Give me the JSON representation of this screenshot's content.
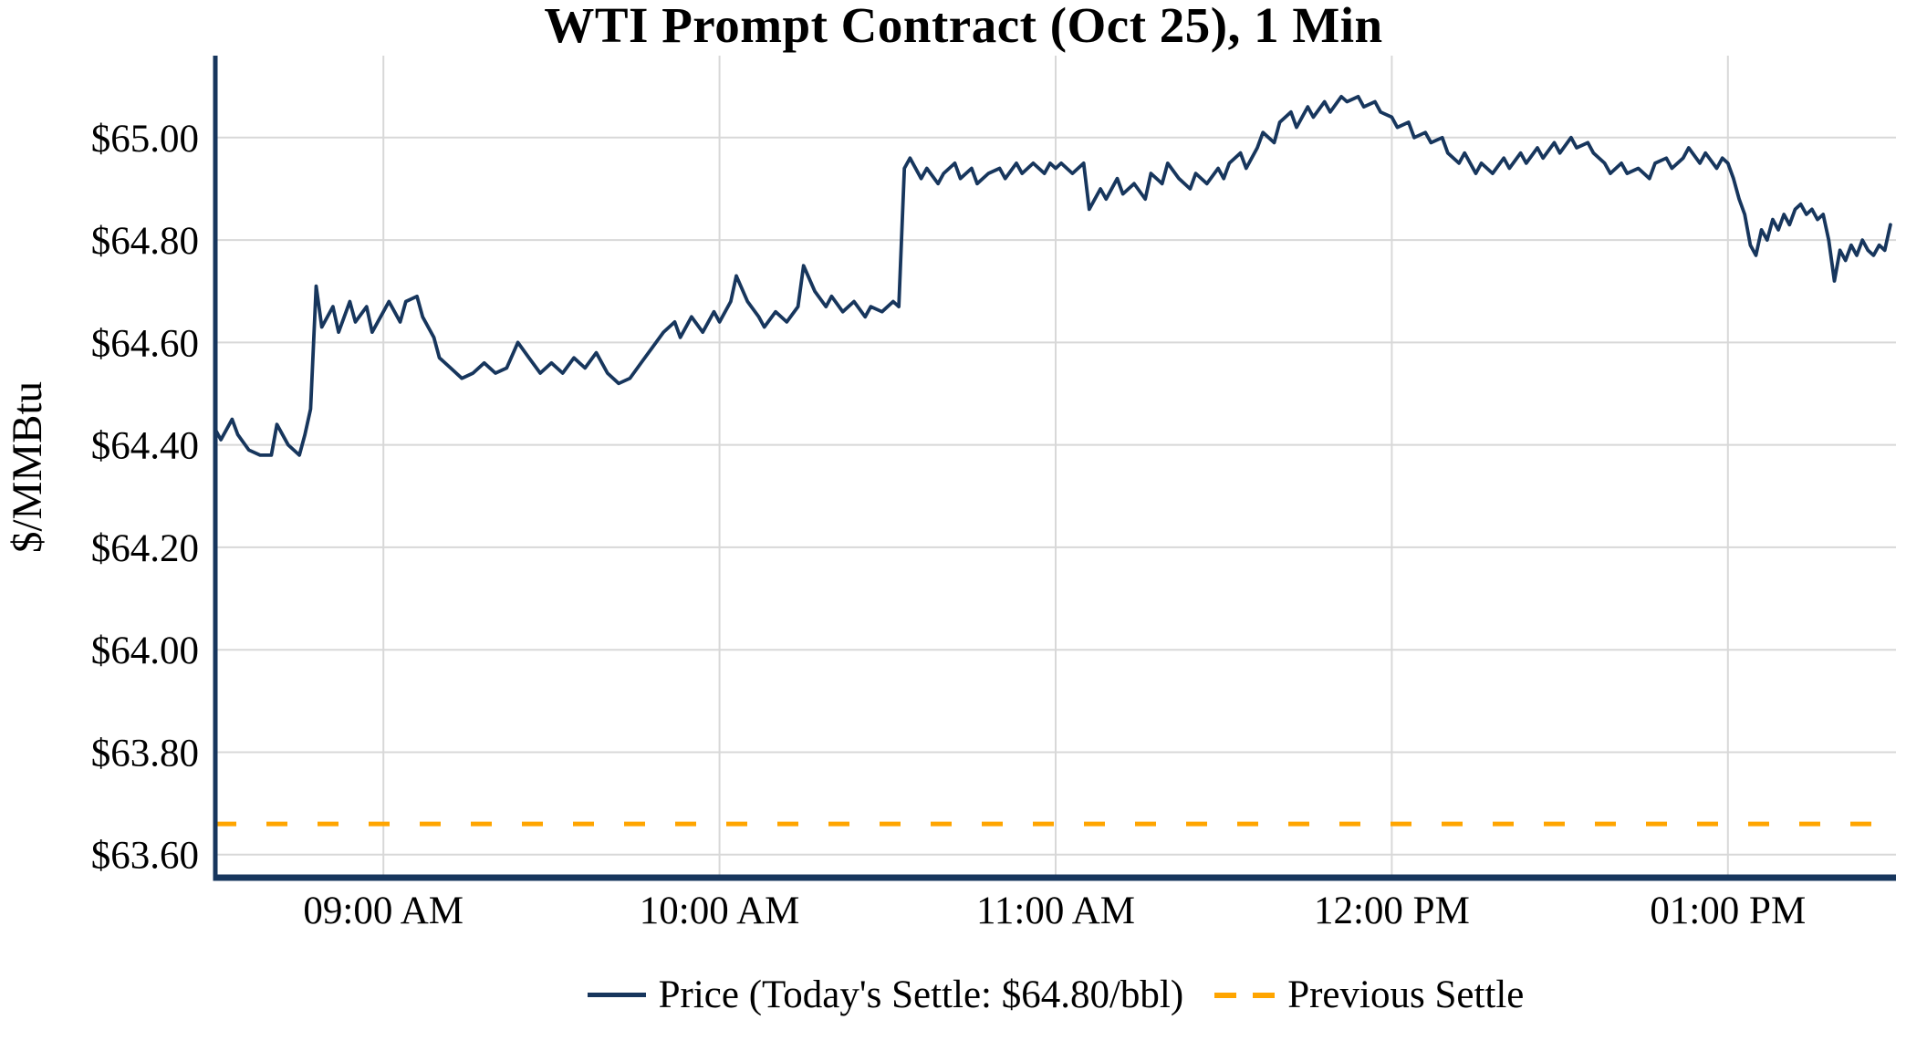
{
  "chart_data": {
    "type": "line",
    "title": "WTI Prompt Contract (Oct 25), 1 Min",
    "xlabel": "",
    "ylabel": "$/MMBtu",
    "x_ticks": [
      "09:00 AM",
      "10:00 AM",
      "11:00 AM",
      "12:00 PM",
      "01:00 PM"
    ],
    "x_tick_minutes": [
      540,
      600,
      660,
      720,
      780
    ],
    "y_ticks": [
      "$65.00",
      "$64.80",
      "$64.60",
      "$64.40",
      "$64.20",
      "$64.00",
      "$63.80",
      "$63.60"
    ],
    "y_tick_values": [
      65.0,
      64.8,
      64.6,
      64.4,
      64.2,
      64.0,
      63.8,
      63.6
    ],
    "x_domain_minutes": [
      510,
      810
    ],
    "y_domain": [
      63.555,
      65.16
    ],
    "grid": true,
    "legend_position": "bottom",
    "todays_settle_usd_per_bbl": 64.8,
    "previous_settle": 63.66,
    "legend": {
      "price_label": "Price (Today's Settle: $64.80/bbl)",
      "prev_settle_label": "Previous Settle"
    },
    "colors": {
      "price": "#17365d",
      "axis": "#17365d",
      "grid": "#d8d8d8",
      "prev_settle": "#FFA500",
      "text": "#000000",
      "background": "#ffffff"
    },
    "series": [
      {
        "name": "Price",
        "type": "line",
        "points": [
          [
            510,
            64.43
          ],
          [
            511,
            64.41
          ],
          [
            513,
            64.45
          ],
          [
            514,
            64.42
          ],
          [
            516,
            64.39
          ],
          [
            518,
            64.38
          ],
          [
            520,
            64.38
          ],
          [
            521,
            64.44
          ],
          [
            523,
            64.4
          ],
          [
            525,
            64.38
          ],
          [
            526,
            64.42
          ],
          [
            527,
            64.47
          ],
          [
            528,
            64.71
          ],
          [
            529,
            64.63
          ],
          [
            531,
            64.67
          ],
          [
            532,
            64.62
          ],
          [
            534,
            64.68
          ],
          [
            535,
            64.64
          ],
          [
            537,
            64.67
          ],
          [
            538,
            64.62
          ],
          [
            540,
            64.66
          ],
          [
            541,
            64.68
          ],
          [
            543,
            64.64
          ],
          [
            544,
            64.68
          ],
          [
            546,
            64.69
          ],
          [
            547,
            64.65
          ],
          [
            549,
            64.61
          ],
          [
            550,
            64.57
          ],
          [
            552,
            64.55
          ],
          [
            554,
            64.53
          ],
          [
            556,
            64.54
          ],
          [
            558,
            64.56
          ],
          [
            560,
            64.54
          ],
          [
            562,
            64.55
          ],
          [
            564,
            64.6
          ],
          [
            566,
            64.57
          ],
          [
            568,
            64.54
          ],
          [
            570,
            64.56
          ],
          [
            572,
            64.54
          ],
          [
            574,
            64.57
          ],
          [
            576,
            64.55
          ],
          [
            578,
            64.58
          ],
          [
            580,
            64.54
          ],
          [
            582,
            64.52
          ],
          [
            584,
            64.53
          ],
          [
            586,
            64.56
          ],
          [
            588,
            64.59
          ],
          [
            590,
            64.62
          ],
          [
            592,
            64.64
          ],
          [
            593,
            64.61
          ],
          [
            595,
            64.65
          ],
          [
            597,
            64.62
          ],
          [
            599,
            64.66
          ],
          [
            600,
            64.64
          ],
          [
            602,
            64.68
          ],
          [
            603,
            64.73
          ],
          [
            605,
            64.68
          ],
          [
            607,
            64.65
          ],
          [
            608,
            64.63
          ],
          [
            610,
            64.66
          ],
          [
            612,
            64.64
          ],
          [
            614,
            64.67
          ],
          [
            615,
            64.75
          ],
          [
            617,
            64.7
          ],
          [
            619,
            64.67
          ],
          [
            620,
            64.69
          ],
          [
            622,
            64.66
          ],
          [
            624,
            64.68
          ],
          [
            626,
            64.65
          ],
          [
            627,
            64.67
          ],
          [
            629,
            64.66
          ],
          [
            631,
            64.68
          ],
          [
            632,
            64.67
          ],
          [
            633,
            64.94
          ],
          [
            634,
            64.96
          ],
          [
            636,
            64.92
          ],
          [
            637,
            64.94
          ],
          [
            639,
            64.91
          ],
          [
            640,
            64.93
          ],
          [
            642,
            64.95
          ],
          [
            643,
            64.92
          ],
          [
            645,
            64.94
          ],
          [
            646,
            64.91
          ],
          [
            648,
            64.93
          ],
          [
            650,
            64.94
          ],
          [
            651,
            64.92
          ],
          [
            653,
            64.95
          ],
          [
            654,
            64.93
          ],
          [
            656,
            64.95
          ],
          [
            658,
            64.93
          ],
          [
            659,
            64.95
          ],
          [
            660,
            64.94
          ],
          [
            661,
            64.95
          ],
          [
            663,
            64.93
          ],
          [
            665,
            64.95
          ],
          [
            666,
            64.86
          ],
          [
            668,
            64.9
          ],
          [
            669,
            64.88
          ],
          [
            671,
            64.92
          ],
          [
            672,
            64.89
          ],
          [
            674,
            64.91
          ],
          [
            676,
            64.88
          ],
          [
            677,
            64.93
          ],
          [
            679,
            64.91
          ],
          [
            680,
            64.95
          ],
          [
            682,
            64.92
          ],
          [
            684,
            64.9
          ],
          [
            685,
            64.93
          ],
          [
            687,
            64.91
          ],
          [
            689,
            64.94
          ],
          [
            690,
            64.92
          ],
          [
            691,
            64.95
          ],
          [
            693,
            64.97
          ],
          [
            694,
            64.94
          ],
          [
            696,
            64.98
          ],
          [
            697,
            65.01
          ],
          [
            699,
            64.99
          ],
          [
            700,
            65.03
          ],
          [
            702,
            65.05
          ],
          [
            703,
            65.02
          ],
          [
            705,
            65.06
          ],
          [
            706,
            65.04
          ],
          [
            708,
            65.07
          ],
          [
            709,
            65.05
          ],
          [
            711,
            65.08
          ],
          [
            712,
            65.07
          ],
          [
            714,
            65.08
          ],
          [
            715,
            65.06
          ],
          [
            717,
            65.07
          ],
          [
            718,
            65.05
          ],
          [
            720,
            65.04
          ],
          [
            721,
            65.02
          ],
          [
            723,
            65.03
          ],
          [
            724,
            65.0
          ],
          [
            726,
            65.01
          ],
          [
            727,
            64.99
          ],
          [
            729,
            65.0
          ],
          [
            730,
            64.97
          ],
          [
            732,
            64.95
          ],
          [
            733,
            64.97
          ],
          [
            735,
            64.93
          ],
          [
            736,
            64.95
          ],
          [
            738,
            64.93
          ],
          [
            740,
            64.96
          ],
          [
            741,
            64.94
          ],
          [
            743,
            64.97
          ],
          [
            744,
            64.95
          ],
          [
            746,
            64.98
          ],
          [
            747,
            64.96
          ],
          [
            749,
            64.99
          ],
          [
            750,
            64.97
          ],
          [
            752,
            65.0
          ],
          [
            753,
            64.98
          ],
          [
            755,
            64.99
          ],
          [
            756,
            64.97
          ],
          [
            758,
            64.95
          ],
          [
            759,
            64.93
          ],
          [
            761,
            64.95
          ],
          [
            762,
            64.93
          ],
          [
            764,
            64.94
          ],
          [
            766,
            64.92
          ],
          [
            767,
            64.95
          ],
          [
            769,
            64.96
          ],
          [
            770,
            64.94
          ],
          [
            772,
            64.96
          ],
          [
            773,
            64.98
          ],
          [
            775,
            64.95
          ],
          [
            776,
            64.97
          ],
          [
            778,
            64.94
          ],
          [
            779,
            64.96
          ],
          [
            780,
            64.95
          ],
          [
            781,
            64.92
          ],
          [
            782,
            64.88
          ],
          [
            783,
            64.85
          ],
          [
            784,
            64.79
          ],
          [
            785,
            64.77
          ],
          [
            786,
            64.82
          ],
          [
            787,
            64.8
          ],
          [
            788,
            64.84
          ],
          [
            789,
            64.82
          ],
          [
            790,
            64.85
          ],
          [
            791,
            64.83
          ],
          [
            792,
            64.86
          ],
          [
            793,
            64.87
          ],
          [
            794,
            64.85
          ],
          [
            795,
            64.86
          ],
          [
            796,
            64.84
          ],
          [
            797,
            64.85
          ],
          [
            798,
            64.8
          ],
          [
            799,
            64.72
          ],
          [
            800,
            64.78
          ],
          [
            801,
            64.76
          ],
          [
            802,
            64.79
          ],
          [
            803,
            64.77
          ],
          [
            804,
            64.8
          ],
          [
            805,
            64.78
          ],
          [
            806,
            64.77
          ],
          [
            807,
            64.79
          ],
          [
            808,
            64.78
          ],
          [
            809,
            64.83
          ]
        ]
      },
      {
        "name": "Previous Settle",
        "type": "hline",
        "value": 63.66
      }
    ]
  }
}
